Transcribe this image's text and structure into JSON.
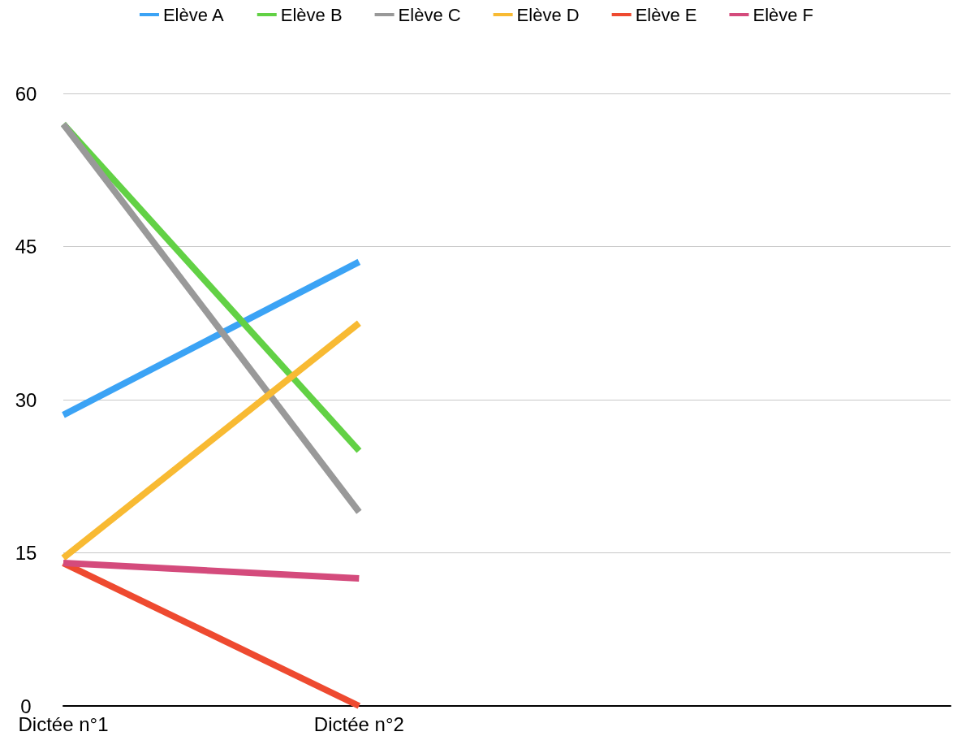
{
  "chart_data": {
    "type": "line",
    "categories": [
      "Dictée n°1",
      "Dictée n°2",
      null,
      null
    ],
    "series": [
      {
        "name": "Elève A",
        "color": "#3ba3f5",
        "values": [
          28.5,
          43.5,
          null,
          null
        ]
      },
      {
        "name": "Elève B",
        "color": "#62d145",
        "values": [
          57,
          25,
          null,
          null
        ]
      },
      {
        "name": "Elève C",
        "color": "#999999",
        "values": [
          57,
          19,
          null,
          null
        ]
      },
      {
        "name": "Elève D",
        "color": "#f8ba33",
        "values": [
          14.5,
          37.5,
          null,
          null
        ]
      },
      {
        "name": "Elève E",
        "color": "#ee4a30",
        "values": [
          14,
          0,
          null,
          null
        ]
      },
      {
        "name": "Elève F",
        "color": "#d44b7c",
        "values": [
          14,
          12.5,
          null,
          null
        ]
      }
    ],
    "ylim": [
      0,
      60
    ],
    "yticks": [
      0,
      15,
      30,
      45,
      60
    ],
    "grid": "y",
    "legend": "top",
    "marker": "none",
    "line_style": "solid"
  }
}
